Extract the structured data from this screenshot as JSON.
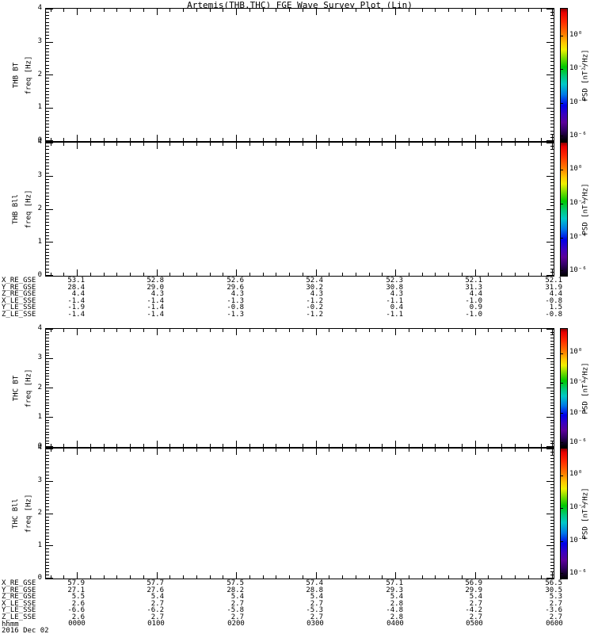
{
  "title": "Artemis(THB,THC) FGE Wave Survey Plot (Lin)",
  "panels": [
    {
      "name": "THB BT",
      "ylabel": "freq [Hz]",
      "yticks": [
        "4",
        "3",
        "2",
        "1",
        "0"
      ]
    },
    {
      "name": "THB Bll",
      "ylabel": "freq [Hz]",
      "yticks": [
        "4",
        "3",
        "2",
        "1",
        "0"
      ]
    },
    {
      "name": "THC BT",
      "ylabel": "freq [Hz]",
      "yticks": [
        "4",
        "3",
        "2",
        "1",
        "0"
      ]
    },
    {
      "name": "THC Bll",
      "ylabel": "freq [Hz]",
      "yticks": [
        "4",
        "3",
        "2",
        "1",
        "0"
      ]
    }
  ],
  "colorbar": {
    "label": "PSD [nT²/Hz]",
    "ticks": [
      "10⁰",
      "10⁻²",
      "10⁻⁴",
      "10⁻⁶"
    ],
    "gradient": [
      "#8b0000",
      "#e80000",
      "#ff2a00",
      "#ff7a00",
      "#ffc800",
      "#f0f000",
      "#6ada00",
      "#00c800",
      "#00c87a",
      "#00c8c8",
      "#0078e8",
      "#0000e8",
      "#3a00c0",
      "#5a009a",
      "#320064",
      "#100022",
      "#000000"
    ]
  },
  "ephemeris_top": {
    "rows": [
      {
        "label": "X_RE_GSE",
        "values": [
          "53.1",
          "52.8",
          "52.6",
          "52.4",
          "52.3",
          "52.1",
          "52.1"
        ]
      },
      {
        "label": "Y_RE_GSE",
        "values": [
          "28.4",
          "29.0",
          "29.6",
          "30.2",
          "30.8",
          "31.3",
          "31.9"
        ]
      },
      {
        "label": "Z_RE_GSE",
        "values": [
          "4.4",
          "4.3",
          "4.3",
          "4.3",
          "4.3",
          "4.4",
          "4.4"
        ]
      },
      {
        "label": "X_LE_SSE",
        "values": [
          "-1.4",
          "-1.4",
          "-1.3",
          "-1.2",
          "-1.1",
          "-1.0",
          "-0.8"
        ]
      },
      {
        "label": "Y_LE_SSE",
        "values": [
          "-1.9",
          "-1.4",
          "-0.8",
          "-0.2",
          "0.4",
          "0.9",
          "1.5"
        ]
      },
      {
        "label": "Z_LE_SSE",
        "values": [
          "-1.4",
          "-1.4",
          "-1.3",
          "-1.2",
          "-1.1",
          "-1.0",
          "-0.8"
        ]
      }
    ]
  },
  "ephemeris_bottom": {
    "rows": [
      {
        "label": "X_RE_GSE",
        "values": [
          "57.9",
          "57.7",
          "57.5",
          "57.4",
          "57.1",
          "56.9",
          "56.5"
        ]
      },
      {
        "label": "Y_RE_GSE",
        "values": [
          "27.1",
          "27.6",
          "28.2",
          "28.8",
          "29.3",
          "29.9",
          "30.5"
        ]
      },
      {
        "label": "Z_RE_GSE",
        "values": [
          "5.5",
          "5.4",
          "5.4",
          "5.4",
          "5.4",
          "5.4",
          "5.3"
        ]
      },
      {
        "label": "X_LE_SSE",
        "values": [
          "2.6",
          "2.7",
          "2.7",
          "2.7",
          "2.8",
          "2.7",
          "2.7"
        ]
      },
      {
        "label": "Y_LE_SSE",
        "values": [
          "-6.6",
          "-6.2",
          "-5.8",
          "-5.3",
          "-4.8",
          "-4.2",
          "-3.6"
        ]
      },
      {
        "label": "Z_LE_SSE",
        "values": [
          "2.6",
          "2.7",
          "2.7",
          "2.7",
          "2.8",
          "2.7",
          "2.7"
        ]
      }
    ]
  },
  "time_axis": {
    "label": "hhmm",
    "ticks": [
      "0000",
      "0100",
      "0200",
      "0300",
      "0400",
      "0500",
      "0600"
    ],
    "date": "2016 Dec 02"
  },
  "chart_data": {
    "type": "heatmap",
    "title": "Artemis(THB,THC) FGE Wave Survey Plot (Lin)",
    "panels": [
      {
        "name": "THB BT",
        "ylabel": "freq [Hz]",
        "ylim": [
          0,
          4
        ],
        "values": []
      },
      {
        "name": "THB Bll",
        "ylabel": "freq [Hz]",
        "ylim": [
          0,
          4
        ],
        "values": []
      },
      {
        "name": "THC BT",
        "ylabel": "freq [Hz]",
        "ylim": [
          0,
          4
        ],
        "values": []
      },
      {
        "name": "THC Bll",
        "ylabel": "freq [Hz]",
        "ylim": [
          0,
          4
        ],
        "values": []
      }
    ],
    "x": {
      "label": "hhmm",
      "date": "2016 Dec 02",
      "tick_labels": [
        "0000",
        "0100",
        "0200",
        "0300",
        "0400",
        "0500",
        "0600"
      ]
    },
    "colorbar": {
      "label": "PSD [nT²/Hz]",
      "tick_labels": [
        "10⁰",
        "10⁻²",
        "10⁻⁴",
        "10⁻⁶"
      ],
      "scale": "log"
    },
    "note": "all four spectrogram panels are blank (no PSD data rendered in the displayed interval)"
  }
}
